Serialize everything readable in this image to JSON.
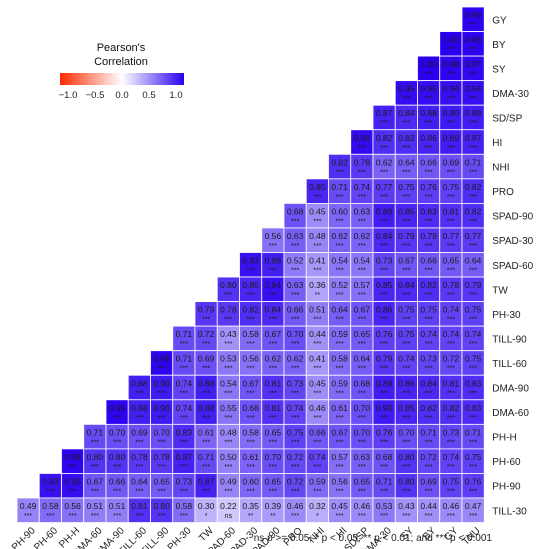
{
  "chart_data": {
    "type": "heatmap",
    "legend": {
      "title_lines": [
        "Pearson's",
        "Correlation"
      ],
      "ticks": [
        "−1.0",
        "−0.5",
        "0.0",
        "0.5",
        "1.0"
      ],
      "range": [
        -1,
        1
      ],
      "colors": {
        "low": "#ff2a00",
        "mid": "#ffffff",
        "high": "#2b00f0"
      }
    },
    "footnote": "ns p >= 0.05; * p < 0.05; ** p < 0.01; and *** p < 0.001",
    "x_labels": [
      "PH-90",
      "PH-60",
      "PH-H",
      "DMA-60",
      "DMA-90",
      "TILL-60",
      "TILL-90",
      "PH-30",
      "TW",
      "SPAD-60",
      "SPAD-30",
      "SPAD-90",
      "PRO",
      "NHI",
      "HI",
      "SD/SP",
      "DMA-30",
      "SY",
      "BY",
      "GY",
      "TNU"
    ],
    "y_labels": [
      "GY",
      "BY",
      "SY",
      "DMA-30",
      "SD/SP",
      "HI",
      "NHI",
      "PRO",
      "SPAD-90",
      "SPAD-30",
      "SPAD-60",
      "TW",
      "PH-30",
      "TILL-90",
      "TILL-60",
      "DMA-90",
      "DMA-60",
      "PH-H",
      "PH-60",
      "PH-90",
      "TILL-30"
    ],
    "rows": [
      {
        "values": [
          0.99
        ],
        "stars": [
          "***"
        ]
      },
      {
        "values": [
          1.0,
          0.98
        ],
        "stars": [
          "***",
          "***"
        ]
      },
      {
        "values": [
          1.0,
          0.98,
          0.97
        ],
        "stars": [
          "***",
          "***",
          "***"
        ]
      },
      {
        "values": [
          0.95,
          0.95,
          0.94,
          0.94
        ],
        "stars": [
          "***",
          "***",
          "***",
          "***"
        ]
      },
      {
        "values": [
          0.87,
          0.84,
          0.88,
          0.9,
          0.89
        ],
        "stars": [
          "***",
          "***",
          "***",
          "***",
          "***"
        ]
      },
      {
        "values": [
          0.96,
          0.82,
          0.82,
          0.86,
          0.89,
          0.87
        ],
        "stars": [
          "***",
          "***",
          "***",
          "***",
          "***",
          "***"
        ]
      },
      {
        "values": [
          0.82,
          0.78,
          0.62,
          0.64,
          0.66,
          0.69,
          0.71
        ],
        "stars": [
          "***",
          "***",
          "***",
          "***",
          "***",
          "***",
          "***"
        ]
      },
      {
        "values": [
          0.85,
          0.71,
          0.74,
          0.77,
          0.75,
          0.76,
          0.75,
          0.82
        ],
        "stars": [
          "***",
          "***",
          "***",
          "***",
          "***",
          "***",
          "***",
          "***"
        ]
      },
      {
        "values": [
          0.68,
          0.45,
          0.6,
          0.63,
          0.89,
          0.85,
          0.83,
          0.81,
          0.82
        ],
        "stars": [
          "***",
          "***",
          "***",
          "***",
          "***",
          "***",
          "***",
          "***",
          "***"
        ]
      },
      {
        "values": [
          0.56,
          0.63,
          0.48,
          0.62,
          0.62,
          0.84,
          0.79,
          0.79,
          0.77,
          0.77
        ],
        "stars": [
          "***",
          "***",
          "***",
          "***",
          "***",
          "***",
          "***",
          "***",
          "***",
          "***"
        ]
      },
      {
        "values": [
          0.93,
          0.88,
          0.52,
          0.41,
          0.54,
          0.54,
          0.73,
          0.67,
          0.66,
          0.65,
          0.64
        ],
        "stars": [
          "***",
          "***",
          "***",
          "***",
          "***",
          "***",
          "***",
          "***",
          "***",
          "***",
          "***"
        ]
      },
      {
        "values": [
          0.8,
          0.85,
          0.94,
          0.63,
          0.36,
          0.52,
          0.57,
          0.85,
          0.84,
          0.82,
          0.78,
          0.79
        ],
        "stars": [
          "***",
          "***",
          "***",
          "***",
          "**",
          "***",
          "***",
          "***",
          "***",
          "***",
          "***",
          "***"
        ]
      },
      {
        "values": [
          0.79,
          0.78,
          0.82,
          0.84,
          0.66,
          0.51,
          0.64,
          0.67,
          0.86,
          0.75,
          0.75,
          0.74,
          0.75
        ],
        "stars": [
          "***",
          "***",
          "***",
          "***",
          "***",
          "***",
          "***",
          "***",
          "***",
          "***",
          "***",
          "***",
          "***"
        ]
      },
      {
        "values": [
          0.71,
          0.72,
          0.43,
          0.58,
          0.67,
          0.7,
          0.44,
          0.59,
          0.65,
          0.76,
          0.75,
          0.74,
          0.74,
          0.74
        ],
        "stars": [
          "***",
          "***",
          "***",
          "***",
          "***",
          "***",
          "***",
          "***",
          "***",
          "***",
          "***",
          "***",
          "***",
          "***"
        ]
      },
      {
        "values": [
          0.98,
          0.71,
          0.69,
          0.53,
          0.56,
          0.62,
          0.62,
          0.41,
          0.58,
          0.64,
          0.79,
          0.74,
          0.73,
          0.72,
          0.75
        ],
        "stars": [
          "***",
          "***",
          "***",
          "***",
          "***",
          "***",
          "***",
          "***",
          "***",
          "***",
          "***",
          "***",
          "***",
          "***",
          "***"
        ]
      },
      {
        "values": [
          0.88,
          0.9,
          0.74,
          0.88,
          0.54,
          0.67,
          0.81,
          0.73,
          0.45,
          0.59,
          0.68,
          0.89,
          0.86,
          0.84,
          0.81,
          0.83
        ],
        "stars": [
          "***",
          "***",
          "***",
          "***",
          "***",
          "***",
          "***",
          "***",
          "***",
          "***",
          "***",
          "***",
          "***",
          "***",
          "***",
          "***"
        ]
      },
      {
        "values": [
          0.99,
          0.88,
          0.9,
          0.74,
          0.88,
          0.55,
          0.68,
          0.81,
          0.74,
          0.46,
          0.61,
          0.7,
          0.9,
          0.85,
          0.82,
          0.82,
          0.83
        ],
        "stars": [
          "***",
          "***",
          "***",
          "***",
          "***",
          "***",
          "***",
          "***",
          "***",
          "***",
          "***",
          "***",
          "***",
          "***",
          "***",
          "***",
          "***"
        ]
      },
      {
        "values": [
          0.71,
          0.7,
          0.69,
          0.7,
          0.83,
          0.61,
          0.48,
          0.58,
          0.65,
          0.75,
          0.66,
          0.67,
          0.7,
          0.76,
          0.7,
          0.71,
          0.73,
          0.71
        ],
        "stars": [
          "***",
          "***",
          "***",
          "***",
          "***",
          "***",
          "***",
          "***",
          "***",
          "***",
          "***",
          "***",
          "***",
          "***",
          "***",
          "***",
          "***",
          "***"
        ]
      },
      {
        "values": [
          0.98,
          0.8,
          0.8,
          0.78,
          0.78,
          0.87,
          0.71,
          0.5,
          0.61,
          0.7,
          0.72,
          0.74,
          0.57,
          0.63,
          0.68,
          0.8,
          0.72,
          0.74,
          0.75
        ],
        "stars": [
          "***",
          "***",
          "***",
          "***",
          "***",
          "***",
          "***",
          "***",
          "***",
          "***",
          "***",
          "***",
          "***",
          "***",
          "***",
          "***",
          "***",
          "***",
          "***"
        ]
      },
      {
        "values": [
          0.93,
          0.95,
          0.67,
          0.66,
          0.64,
          0.65,
          0.73,
          0.87,
          0.49,
          0.6,
          0.65,
          0.72,
          0.59,
          0.56,
          0.65,
          0.71,
          0.8,
          0.69,
          0.75,
          0.76
        ],
        "stars": [
          "***",
          "***",
          "***",
          "***",
          "***",
          "***",
          "***",
          "***",
          "***",
          "***",
          "***",
          "***",
          "***",
          "***",
          "***",
          "***",
          "***",
          "***",
          "***",
          "***"
        ]
      },
      {
        "values": [
          0.49,
          0.58,
          0.56,
          0.51,
          0.51,
          0.81,
          0.8,
          0.58,
          0.3,
          0.22,
          0.35,
          0.39,
          0.46,
          0.32,
          0.45,
          0.46,
          0.53,
          0.43,
          0.44,
          0.46,
          0.47
        ],
        "stars": [
          "***",
          "***",
          "***",
          "***",
          "***",
          "***",
          "***",
          "***",
          "*",
          "ns",
          "**",
          "**",
          "***",
          "*",
          "***",
          "***",
          "***",
          "***",
          "***",
          "***",
          "***"
        ]
      }
    ]
  }
}
